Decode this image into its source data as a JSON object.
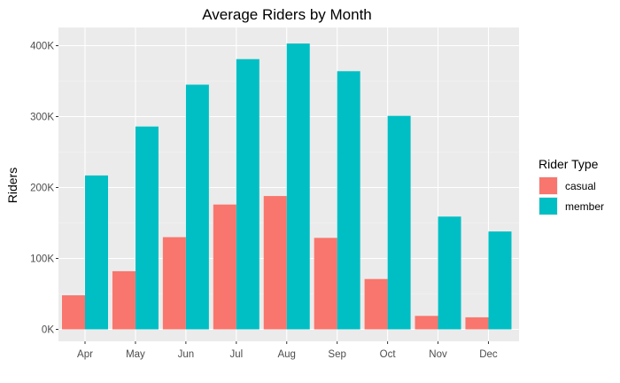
{
  "chart_data": {
    "type": "bar",
    "title": "Average Riders by Month",
    "xlabel": "",
    "ylabel": "Riders",
    "categories": [
      "Apr",
      "May",
      "Jun",
      "Jul",
      "Aug",
      "Sep",
      "Oct",
      "Nov",
      "Dec"
    ],
    "ylim": [
      0,
      420000
    ],
    "yticks": [
      0,
      100000,
      200000,
      300000,
      400000
    ],
    "ytick_labels": [
      "0K",
      "100K",
      "200K",
      "300K",
      "400K"
    ],
    "grid": true,
    "legend": {
      "title": "Rider Type",
      "position": "right"
    },
    "series": [
      {
        "name": "casual",
        "color": "#F8766D",
        "values": [
          48000,
          82000,
          130000,
          176000,
          188000,
          129000,
          71000,
          19000,
          17000
        ]
      },
      {
        "name": "member",
        "color": "#00BFC4",
        "values": [
          217000,
          286000,
          345000,
          381000,
          403000,
          364000,
          301000,
          159000,
          138000
        ]
      }
    ]
  }
}
